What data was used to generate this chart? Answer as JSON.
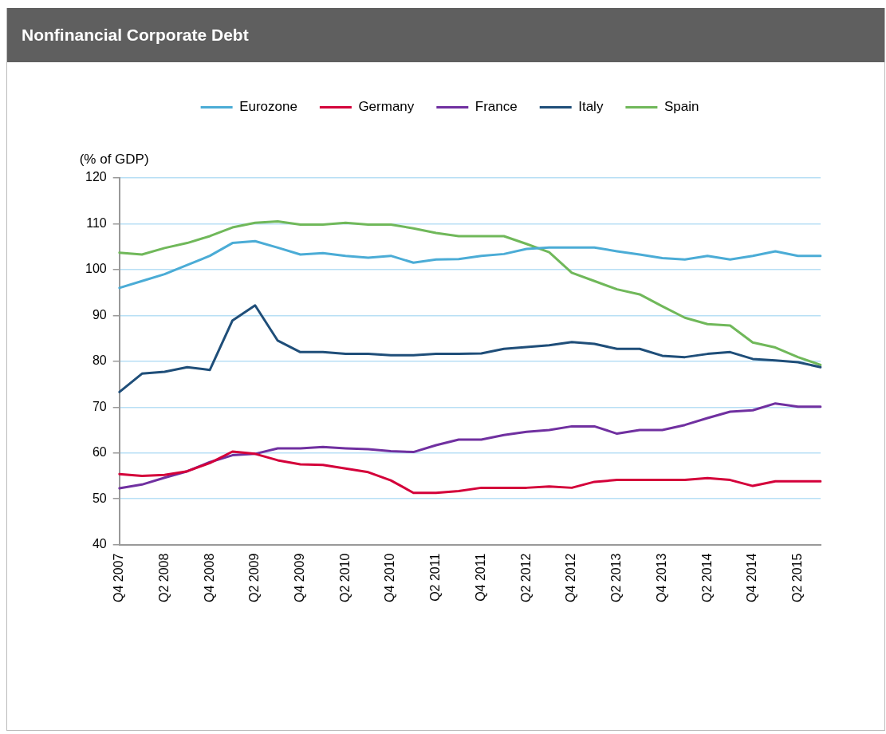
{
  "chart_data": {
    "type": "line",
    "title": "Nonfinancial Corporate Debt",
    "ylabel": "(% of GDP)",
    "categories": [
      "Q4 2007",
      null,
      "Q2 2008",
      null,
      "Q4 2008",
      null,
      "Q2 2009",
      null,
      "Q4 2009",
      null,
      "Q2 2010",
      null,
      "Q4 2010",
      null,
      "Q2 2011",
      null,
      "Q4 2011",
      null,
      "Q2 2012",
      null,
      "Q4 2012",
      null,
      "Q2 2013",
      null,
      "Q4 2013",
      null,
      "Q2 2014",
      null,
      "Q4 2014",
      null,
      "Q2 2015",
      null
    ],
    "series": [
      {
        "name": "Eurozone",
        "color": "#4bacd6",
        "values": [
          96,
          97.5,
          99,
          101,
          103,
          105.8,
          106.2,
          104.8,
          103.3,
          103.6,
          103,
          102.6,
          103,
          101.5,
          102.2,
          102.3,
          103,
          103.4,
          104.5,
          104.8,
          104.8,
          104.8,
          104,
          103.3,
          102.5,
          102.2,
          103,
          102.2,
          103,
          104,
          103,
          103
        ]
      },
      {
        "name": "Germany",
        "color": "#d4003a",
        "values": [
          55.4,
          55,
          55.2,
          56,
          57.8,
          60.3,
          59.8,
          58.4,
          57.5,
          57.4,
          56.6,
          55.8,
          54,
          51.3,
          51.3,
          51.7,
          52.4,
          52.4,
          52.4,
          52.7,
          52.4,
          53.7,
          54.1,
          54.1,
          54.1,
          54.1,
          54.5,
          54.1,
          52.8,
          53.8,
          53.8,
          53.8
        ]
      },
      {
        "name": "France",
        "color": "#7030a0",
        "values": [
          52.3,
          53.1,
          54.6,
          56,
          58,
          59.5,
          59.8,
          61,
          61,
          61.3,
          61,
          60.8,
          60.4,
          60.2,
          61.7,
          62.9,
          62.9,
          63.9,
          64.6,
          65,
          65.8,
          65.8,
          64.2,
          65,
          65,
          66.1,
          67.6,
          69,
          69.3,
          70.8,
          70.1,
          70.1
        ]
      },
      {
        "name": "Italy",
        "color": "#1f4e79",
        "values": [
          73.3,
          77.3,
          77.7,
          78.7,
          78.1,
          88.9,
          92.2,
          84.5,
          82,
          82,
          81.6,
          81.6,
          81.3,
          81.3,
          81.6,
          81.6,
          81.7,
          82.7,
          83.1,
          83.5,
          84.2,
          83.8,
          82.7,
          82.7,
          81.2,
          80.9,
          81.6,
          82,
          80.5,
          80.2,
          79.8,
          78.7
        ]
      },
      {
        "name": "Spain",
        "color": "#70b85a",
        "values": [
          103.7,
          103.3,
          104.7,
          105.8,
          107.3,
          109.2,
          110.2,
          110.5,
          109.8,
          109.8,
          110.2,
          109.8,
          109.8,
          109,
          108,
          107.3,
          107.3,
          107.3,
          105.6,
          103.8,
          99.3,
          97.5,
          95.7,
          94.6,
          92,
          89.5,
          88.1,
          87.8,
          84.1,
          83,
          80.9,
          79.2
        ]
      }
    ],
    "ylim": [
      40,
      120
    ],
    "yticks": [
      40,
      50,
      60,
      70,
      80,
      90,
      100,
      110,
      120
    ],
    "grid": "y",
    "legend": "top",
    "marker": "none",
    "line_style": "solid"
  }
}
